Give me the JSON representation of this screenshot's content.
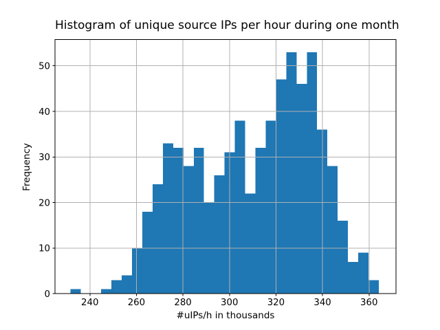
{
  "figure": {
    "title": "Histogram of unique source IPs per hour during one month",
    "xlabel": "#uIPs/h in thousands",
    "ylabel": "Frequency"
  },
  "chart_data": {
    "type": "bar",
    "subtype": "histogram",
    "title": "Histogram of unique source IPs per hour during one month",
    "xlabel": "#uIPs/h in thousands",
    "ylabel": "Frequency",
    "bin_edges": [
      231.6,
      236.02,
      240.44,
      244.86,
      249.28,
      253.7,
      258.12,
      262.54,
      266.96,
      271.38,
      275.8,
      280.22,
      284.64,
      289.06,
      293.48,
      297.9,
      302.32,
      306.74,
      311.16,
      315.58,
      320.0,
      324.42,
      328.84,
      333.26,
      337.68,
      342.1,
      346.52,
      350.94,
      355.36,
      359.78,
      364.2
    ],
    "counts": [
      1,
      0,
      0,
      1,
      3,
      4,
      10,
      18,
      24,
      33,
      32,
      28,
      32,
      20,
      26,
      31,
      38,
      22,
      32,
      38,
      47,
      53,
      46,
      53,
      36,
      28,
      16,
      7,
      9,
      3
    ],
    "xticks": [
      240,
      260,
      280,
      300,
      320,
      340,
      360
    ],
    "yticks": [
      0,
      10,
      20,
      30,
      40,
      50
    ],
    "xlim": [
      225.0,
      371.6
    ],
    "ylim": [
      0,
      55.75
    ],
    "grid": true,
    "grid_over_bars": true,
    "legend": false,
    "bar_color": "#1f77b4",
    "grid_color": "#b0b0b0",
    "axis_color": "#000000",
    "text_color": "#000000",
    "background": "#ffffff"
  }
}
